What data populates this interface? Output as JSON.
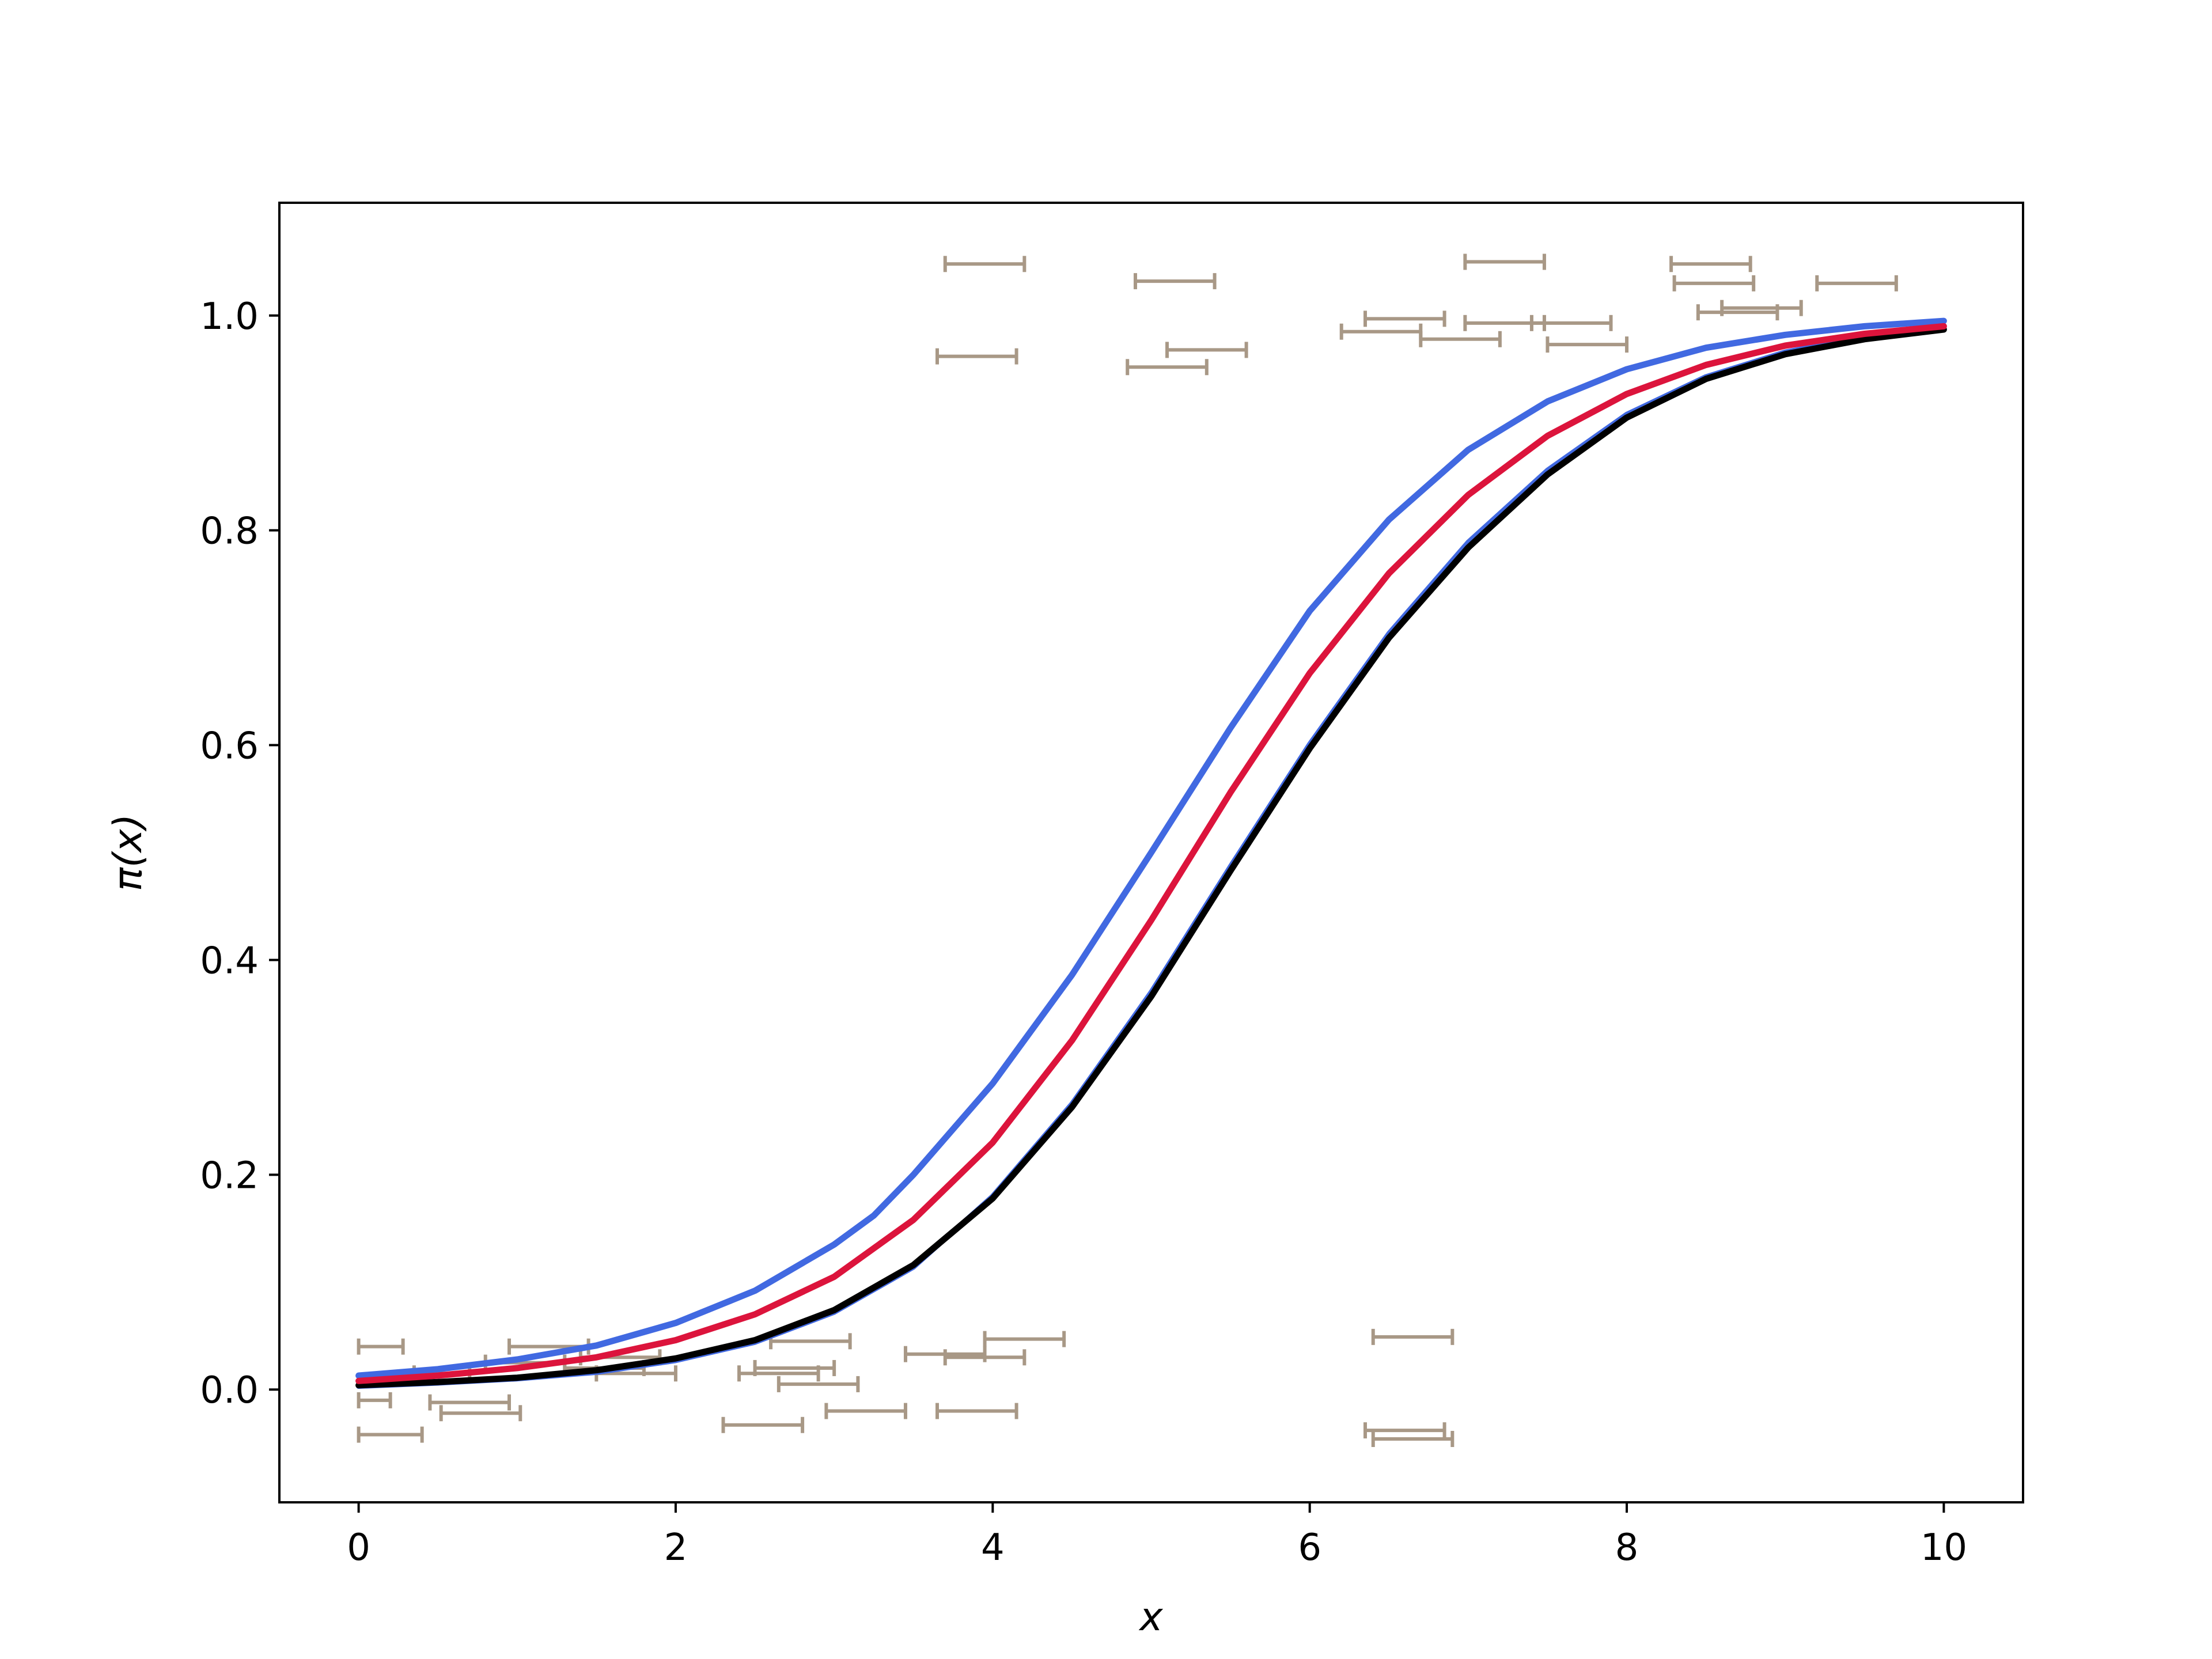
{
  "chart_data": {
    "type": "line",
    "xlabel": "x",
    "ylabel": "π(x)",
    "xlim": [
      -0.5,
      10.5
    ],
    "ylim": [
      -0.105,
      1.105
    ],
    "xticks": [
      0,
      2,
      4,
      6,
      8,
      10
    ],
    "yticks": [
      0.0,
      0.2,
      0.4,
      0.6,
      0.8,
      1.0
    ],
    "xtick_labels": [
      "0",
      "2",
      "4",
      "6",
      "8",
      "10"
    ],
    "ytick_labels": [
      "0.0",
      "0.2",
      "0.4",
      "0.6",
      "0.8",
      "1.0"
    ],
    "grid": false,
    "legend": "none",
    "colors": {
      "true_curve": "#000000",
      "fitted_curve": "#dc143c",
      "band": "#4169e1",
      "data_intervals": "#a89886"
    },
    "series": [
      {
        "style": "black-solid",
        "x": [
          0,
          0.5,
          1,
          1.5,
          2,
          2.5,
          3,
          3.5,
          4,
          4.5,
          5,
          5.5,
          6,
          6.5,
          7,
          7.5,
          8,
          8.5,
          9,
          9.5,
          10
        ],
        "y": [
          0.004,
          0.007,
          0.011,
          0.018,
          0.029,
          0.046,
          0.074,
          0.116,
          0.178,
          0.263,
          0.366,
          0.483,
          0.597,
          0.7,
          0.784,
          0.852,
          0.905,
          0.941,
          0.964,
          0.978,
          0.987
        ]
      },
      {
        "style": "crimson-solid",
        "x": [
          0,
          0.5,
          1,
          1.5,
          2,
          2.5,
          3,
          3.5,
          4,
          4.5,
          5,
          5.5,
          6,
          6.5,
          7,
          7.5,
          8,
          8.5,
          9,
          9.5,
          10
        ],
        "y": [
          0.008,
          0.013,
          0.02,
          0.03,
          0.046,
          0.07,
          0.105,
          0.158,
          0.23,
          0.325,
          0.437,
          0.556,
          0.667,
          0.76,
          0.833,
          0.888,
          0.927,
          0.954,
          0.972,
          0.983,
          0.99
        ]
      },
      {
        "style": "blue-upper",
        "x": [
          0,
          0.5,
          1,
          1.5,
          2,
          2.5,
          3,
          3.25,
          3.5,
          4,
          4.5,
          5,
          5.5,
          6,
          6.5,
          7,
          7.5,
          8,
          8.5,
          9,
          9.5,
          10
        ],
        "y": [
          0.013,
          0.019,
          0.028,
          0.041,
          0.062,
          0.092,
          0.135,
          0.162,
          0.2,
          0.285,
          0.386,
          0.5,
          0.616,
          0.725,
          0.81,
          0.875,
          0.92,
          0.95,
          0.97,
          0.982,
          0.99,
          0.995
        ]
      },
      {
        "style": "blue-lower",
        "x": [
          0,
          0.5,
          1,
          1.5,
          2,
          2.5,
          3,
          3.5,
          4,
          4.5,
          5,
          5.5,
          6,
          6.5,
          7,
          7.5,
          8,
          8.5,
          9,
          9.5,
          10
        ],
        "y": [
          0.003,
          0.006,
          0.01,
          0.016,
          0.027,
          0.044,
          0.072,
          0.114,
          0.18,
          0.266,
          0.37,
          0.487,
          0.601,
          0.704,
          0.789,
          0.856,
          0.908,
          0.943,
          0.966,
          0.98,
          0.988
        ]
      }
    ],
    "intervals": [
      {
        "x1": 0.0,
        "x2": 0.28,
        "y": 0.04
      },
      {
        "x1": 0.0,
        "x2": 0.2,
        "y": -0.01
      },
      {
        "x1": 0.0,
        "x2": 0.4,
        "y": -0.042
      },
      {
        "x1": 0.35,
        "x2": 0.7,
        "y": 0.015
      },
      {
        "x1": 0.45,
        "x2": 0.95,
        "y": -0.012
      },
      {
        "x1": 0.52,
        "x2": 1.02,
        "y": -0.022
      },
      {
        "x1": 0.8,
        "x2": 1.3,
        "y": 0.025
      },
      {
        "x1": 0.95,
        "x2": 1.45,
        "y": 0.04
      },
      {
        "x1": 1.3,
        "x2": 1.8,
        "y": 0.02
      },
      {
        "x1": 1.4,
        "x2": 1.9,
        "y": 0.03
      },
      {
        "x1": 1.5,
        "x2": 2.0,
        "y": 0.015
      },
      {
        "x1": 2.3,
        "x2": 2.8,
        "y": -0.033
      },
      {
        "x1": 2.4,
        "x2": 2.9,
        "y": 0.015
      },
      {
        "x1": 2.5,
        "x2": 3.0,
        "y": 0.02
      },
      {
        "x1": 2.6,
        "x2": 3.1,
        "y": 0.045
      },
      {
        "x1": 2.65,
        "x2": 3.15,
        "y": 0.005
      },
      {
        "x1": 2.95,
        "x2": 3.45,
        "y": -0.02
      },
      {
        "x1": 3.45,
        "x2": 3.95,
        "y": 0.033
      },
      {
        "x1": 3.7,
        "x2": 4.2,
        "y": 0.03
      },
      {
        "x1": 3.65,
        "x2": 4.15,
        "y": -0.02
      },
      {
        "x1": 3.95,
        "x2": 4.45,
        "y": 0.047
      },
      {
        "x1": 3.7,
        "x2": 4.2,
        "y": 1.048
      },
      {
        "x1": 3.65,
        "x2": 4.15,
        "y": 0.962
      },
      {
        "x1": 4.9,
        "x2": 5.4,
        "y": 1.032
      },
      {
        "x1": 4.85,
        "x2": 5.35,
        "y": 0.952
      },
      {
        "x1": 5.1,
        "x2": 5.6,
        "y": 0.968
      },
      {
        "x1": 6.2,
        "x2": 6.7,
        "y": 0.985
      },
      {
        "x1": 6.35,
        "x2": 6.85,
        "y": 0.997
      },
      {
        "x1": 6.4,
        "x2": 6.9,
        "y": 0.049
      },
      {
        "x1": 6.35,
        "x2": 6.85,
        "y": -0.038
      },
      {
        "x1": 6.4,
        "x2": 6.9,
        "y": -0.046
      },
      {
        "x1": 6.7,
        "x2": 7.2,
        "y": 0.978
      },
      {
        "x1": 6.98,
        "x2": 7.48,
        "y": 1.05
      },
      {
        "x1": 6.98,
        "x2": 7.48,
        "y": 0.993
      },
      {
        "x1": 7.4,
        "x2": 7.9,
        "y": 0.993
      },
      {
        "x1": 7.5,
        "x2": 8.0,
        "y": 0.973
      },
      {
        "x1": 8.28,
        "x2": 8.78,
        "y": 1.048
      },
      {
        "x1": 8.3,
        "x2": 8.8,
        "y": 1.03
      },
      {
        "x1": 8.45,
        "x2": 8.95,
        "y": 1.003
      },
      {
        "x1": 8.6,
        "x2": 9.1,
        "y": 1.007
      },
      {
        "x1": 9.2,
        "x2": 9.7,
        "y": 1.03
      }
    ]
  }
}
